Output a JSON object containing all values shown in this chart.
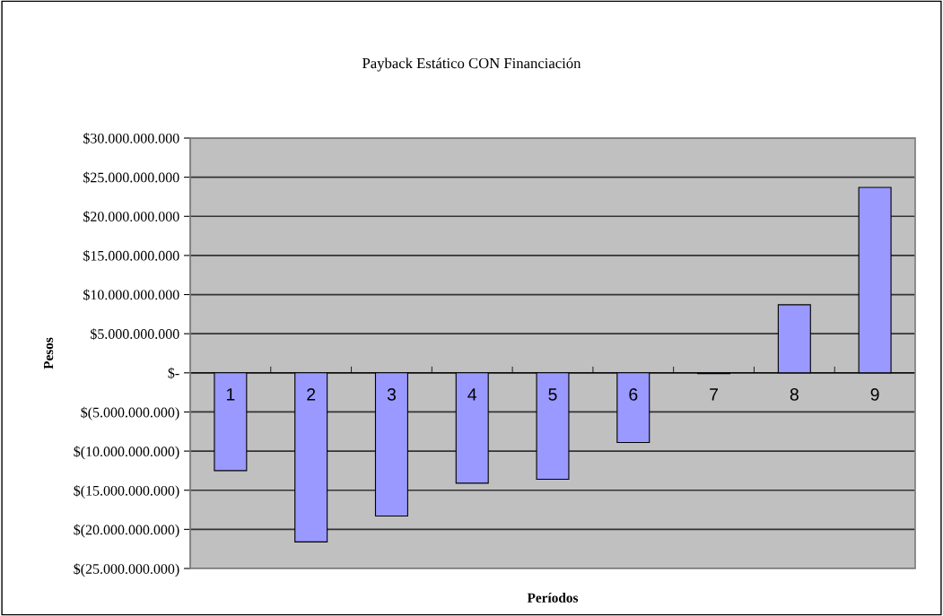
{
  "chart_data": {
    "type": "bar",
    "title": "Payback Estático CON Financiación",
    "xlabel": "Períodos",
    "ylabel": "Pesos",
    "categories": [
      "1",
      "2",
      "3",
      "4",
      "5",
      "6",
      "7",
      "8",
      "9"
    ],
    "values": [
      -12500000000,
      -21600000000,
      -18300000000,
      -14100000000,
      -13600000000,
      -8900000000,
      -100000000,
      8700000000,
      23700000000
    ],
    "color": "#9999ff",
    "ylim": [
      -25000000000,
      30000000000
    ],
    "yticks": [
      {
        "value": 30000000000,
        "label": "$30.000.000.000"
      },
      {
        "value": 25000000000,
        "label": "$25.000.000.000"
      },
      {
        "value": 20000000000,
        "label": "$20.000.000.000"
      },
      {
        "value": 15000000000,
        "label": "$15.000.000.000"
      },
      {
        "value": 10000000000,
        "label": "$10.000.000.000"
      },
      {
        "value": 5000000000,
        "label": "$5.000.000.000"
      },
      {
        "value": 0,
        "label": "$-"
      },
      {
        "value": -5000000000,
        "label": "$(5.000.000.000)"
      },
      {
        "value": -10000000000,
        "label": "$(10.000.000.000)"
      },
      {
        "value": -15000000000,
        "label": "$(15.000.000.000)"
      },
      {
        "value": -20000000000,
        "label": "$(20.000.000.000)"
      },
      {
        "value": -25000000000,
        "label": "$(25.000.000.000)"
      }
    ],
    "grid": "y",
    "legend": false
  }
}
